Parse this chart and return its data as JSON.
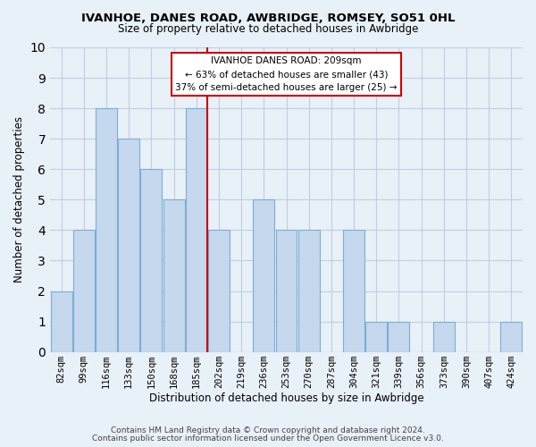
{
  "title1": "IVANHOE, DANES ROAD, AWBRIDGE, ROMSEY, SO51 0HL",
  "title2": "Size of property relative to detached houses in Awbridge",
  "xlabel": "Distribution of detached houses by size in Awbridge",
  "ylabel": "Number of detached properties",
  "bar_labels": [
    "82sqm",
    "99sqm",
    "116sqm",
    "133sqm",
    "150sqm",
    "168sqm",
    "185sqm",
    "202sqm",
    "219sqm",
    "236sqm",
    "253sqm",
    "270sqm",
    "287sqm",
    "304sqm",
    "321sqm",
    "339sqm",
    "356sqm",
    "373sqm",
    "390sqm",
    "407sqm",
    "424sqm"
  ],
  "bar_values": [
    2,
    4,
    8,
    7,
    6,
    5,
    8,
    4,
    0,
    5,
    4,
    4,
    0,
    4,
    1,
    1,
    0,
    1,
    0,
    0,
    1
  ],
  "bar_color": "#c5d8ed",
  "bar_edge_color": "#7aafd4",
  "ref_line_index": 7,
  "annotation_title": "IVANHOE DANES ROAD: 209sqm",
  "annotation_line1": "← 63% of detached houses are smaller (43)",
  "annotation_line2": "37% of semi-detached houses are larger (25) →",
  "annotation_box_color": "#ffffff",
  "annotation_box_edge_color": "#cc0000",
  "ylim": [
    0,
    10
  ],
  "yticks": [
    0,
    1,
    2,
    3,
    4,
    5,
    6,
    7,
    8,
    9,
    10
  ],
  "grid_color": "#c0cfe0",
  "footer1": "Contains HM Land Registry data © Crown copyright and database right 2024.",
  "footer2": "Contains public sector information licensed under the Open Government Licence v3.0.",
  "bg_color": "#e8f0f8"
}
